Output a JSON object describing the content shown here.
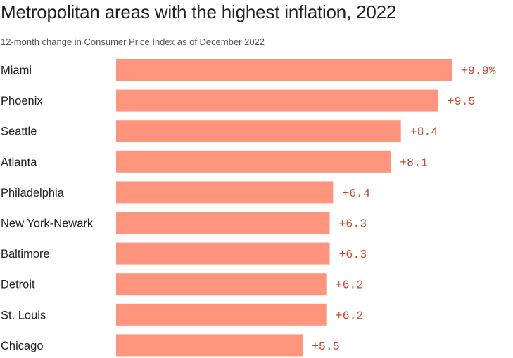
{
  "chart_data": {
    "type": "bar",
    "orientation": "horizontal",
    "title": "Metropolitan areas with the highest inflation, 2022",
    "subtitle": "12-month change in Consumer Price Index as of December 2022",
    "categories": [
      "Miami",
      "Phoenix",
      "Seattle",
      "Atlanta",
      "Philadelphia",
      "New York-Newark",
      "Baltimore",
      "Detroit",
      "St. Louis",
      "Chicago"
    ],
    "values": [
      9.9,
      9.5,
      8.4,
      8.1,
      6.4,
      6.3,
      6.3,
      6.2,
      6.2,
      5.5
    ],
    "data_labels": [
      "+9.9%",
      "+9.5",
      "+8.4",
      "+8.1",
      "+6.4",
      "+6.3",
      "+6.3",
      "+6.2",
      "+6.2",
      "+5.5"
    ],
    "xlim": [
      0,
      9.9
    ],
    "grid": false,
    "legend": "none",
    "colors": {
      "bar": "#fe957c",
      "value_label": "#c9472a",
      "text": "#222222",
      "subtitle": "#555555"
    }
  }
}
